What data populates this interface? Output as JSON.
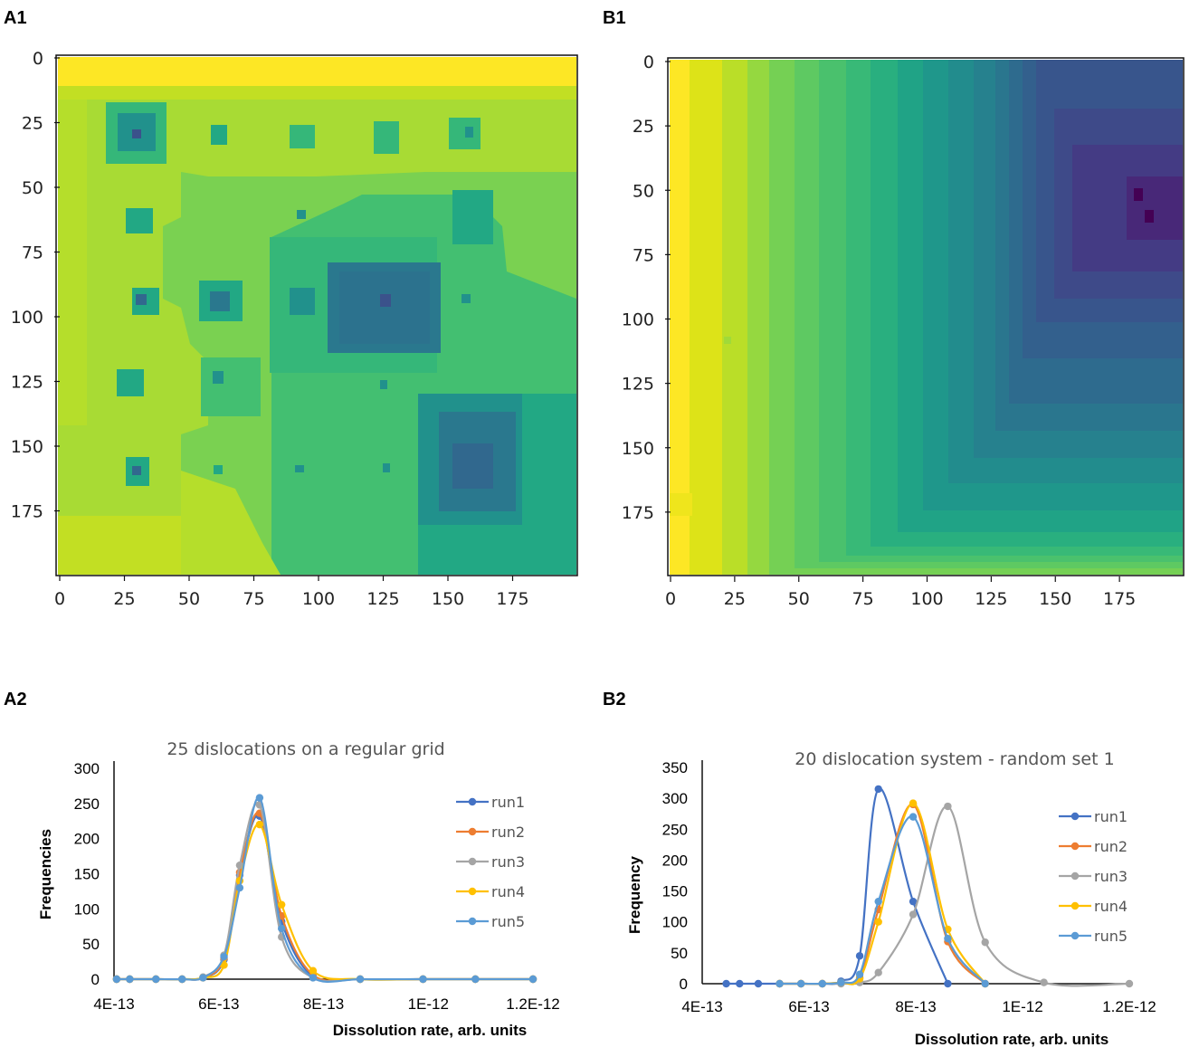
{
  "panels": {
    "a1": "A1",
    "b1": "B1",
    "a2": "A2",
    "b2": "B2"
  },
  "maps": {
    "a1": {
      "xticks": [
        "0",
        "25",
        "50",
        "75",
        "100",
        "125",
        "150",
        "175"
      ],
      "yticks": [
        "0",
        "25",
        "50",
        "75",
        "100",
        "125",
        "150",
        "175"
      ]
    },
    "b1": {
      "xticks": [
        "0",
        "25",
        "50",
        "75",
        "100",
        "125",
        "150",
        "175"
      ],
      "yticks": [
        "0",
        "25",
        "50",
        "75",
        "100",
        "125",
        "150",
        "175"
      ]
    }
  },
  "chart_data": [
    {
      "type": "line",
      "title": "25 dislocations on a regular grid",
      "xlabel": "Dissolution rate, arb. units",
      "ylabel": "Frequencies",
      "xlim": [
        4e-13,
        1.2e-12
      ],
      "ylim": [
        0,
        300
      ],
      "xtick_labels": [
        "4E-13",
        "6E-13",
        "8E-13",
        "1E-12",
        "1.2E-12"
      ],
      "ytick_labels": [
        "0",
        "50",
        "100",
        "150",
        "200",
        "250",
        "300"
      ],
      "series": [
        {
          "name": "run1",
          "color": "#4472C4",
          "points": [
            [
              4.05e-13,
              0
            ],
            [
              4.3e-13,
              0
            ],
            [
              4.8e-13,
              0
            ],
            [
              5.3e-13,
              0
            ],
            [
              5.7e-13,
              2
            ],
            [
              6.1e-13,
              28
            ],
            [
              6.4e-13,
              148
            ],
            [
              6.78e-13,
              232
            ],
            [
              7.2e-13,
              82
            ],
            [
              7.8e-13,
              4
            ],
            [
              8.7e-13,
              0
            ],
            [
              9.9e-13,
              0
            ],
            [
              1.09e-12,
              0
            ],
            [
              1.2e-12,
              0
            ]
          ]
        },
        {
          "name": "run2",
          "color": "#ED7D31",
          "points": [
            [
              4.05e-13,
              0
            ],
            [
              4.3e-13,
              0
            ],
            [
              4.8e-13,
              0
            ],
            [
              5.3e-13,
              0
            ],
            [
              5.7e-13,
              2
            ],
            [
              6.1e-13,
              30
            ],
            [
              6.4e-13,
              152
            ],
            [
              6.78e-13,
              236
            ],
            [
              7.2e-13,
              90
            ],
            [
              7.8e-13,
              6
            ],
            [
              8.7e-13,
              0
            ],
            [
              9.9e-13,
              0
            ],
            [
              1.09e-12,
              0
            ],
            [
              1.2e-12,
              0
            ]
          ]
        },
        {
          "name": "run3",
          "color": "#A5A5A5",
          "points": [
            [
              4.05e-13,
              0
            ],
            [
              4.3e-13,
              0
            ],
            [
              4.8e-13,
              0
            ],
            [
              5.3e-13,
              0
            ],
            [
              5.7e-13,
              3
            ],
            [
              6.1e-13,
              34
            ],
            [
              6.4e-13,
              162
            ],
            [
              6.78e-13,
              248
            ],
            [
              7.2e-13,
              60
            ],
            [
              7.8e-13,
              2
            ],
            [
              8.7e-13,
              0
            ],
            [
              9.9e-13,
              0
            ],
            [
              1.09e-12,
              0
            ],
            [
              1.2e-12,
              0
            ]
          ]
        },
        {
          "name": "run4",
          "color": "#FFC000",
          "points": [
            [
              4.05e-13,
              0
            ],
            [
              4.3e-13,
              0
            ],
            [
              4.8e-13,
              0
            ],
            [
              5.3e-13,
              0
            ],
            [
              5.7e-13,
              2
            ],
            [
              6.1e-13,
              20
            ],
            [
              6.4e-13,
              140
            ],
            [
              6.78e-13,
              220
            ],
            [
              7.2e-13,
              106
            ],
            [
              7.8e-13,
              12
            ],
            [
              8.7e-13,
              0
            ],
            [
              9.9e-13,
              0
            ],
            [
              1.09e-12,
              0
            ],
            [
              1.2e-12,
              0
            ]
          ]
        },
        {
          "name": "run5",
          "color": "#5B9BD5",
          "points": [
            [
              4.05e-13,
              0
            ],
            [
              4.3e-13,
              0
            ],
            [
              4.8e-13,
              0
            ],
            [
              5.3e-13,
              0
            ],
            [
              5.7e-13,
              2
            ],
            [
              6.1e-13,
              32
            ],
            [
              6.4e-13,
              130
            ],
            [
              6.78e-13,
              258
            ],
            [
              7.2e-13,
              72
            ],
            [
              7.8e-13,
              2
            ],
            [
              8.7e-13,
              0
            ],
            [
              9.9e-13,
              0
            ],
            [
              1.09e-12,
              0
            ],
            [
              1.2e-12,
              0
            ]
          ]
        }
      ]
    },
    {
      "type": "line",
      "title": "20 dislocation system - random set 1",
      "xlabel": "Dissolution rate, arb. units",
      "ylabel": "Frequency",
      "xlim": [
        4e-13,
        1.2e-12
      ],
      "ylim": [
        0,
        350
      ],
      "xtick_labels": [
        "4E-13",
        "6E-13",
        "8E-13",
        "1E-12",
        "1.2E-12"
      ],
      "ytick_labels": [
        "0",
        "50",
        "100",
        "150",
        "200",
        "250",
        "300",
        "350"
      ],
      "series": [
        {
          "name": "run1",
          "color": "#4472C4",
          "points": [
            [
              4.45e-13,
              0
            ],
            [
              4.7e-13,
              0
            ],
            [
              5.05e-13,
              0
            ],
            [
              5.45e-13,
              0
            ],
            [
              5.85e-13,
              0
            ],
            [
              6.25e-13,
              0
            ],
            [
              6.6e-13,
              4
            ],
            [
              6.95e-13,
              45
            ],
            [
              7.3e-13,
              315
            ],
            [
              7.95e-13,
              133
            ],
            [
              8.6e-13,
              0
            ]
          ]
        },
        {
          "name": "run2",
          "color": "#ED7D31",
          "points": [
            [
              5.45e-13,
              0
            ],
            [
              5.85e-13,
              0
            ],
            [
              6.25e-13,
              0
            ],
            [
              6.6e-13,
              2
            ],
            [
              6.95e-13,
              10
            ],
            [
              7.3e-13,
              120
            ],
            [
              7.95e-13,
              290
            ],
            [
              8.6e-13,
              68
            ],
            [
              9.3e-13,
              0
            ]
          ]
        },
        {
          "name": "run3",
          "color": "#A5A5A5",
          "points": [
            [
              6.25e-13,
              0
            ],
            [
              6.6e-13,
              0
            ],
            [
              6.95e-13,
              2
            ],
            [
              7.3e-13,
              18
            ],
            [
              7.95e-13,
              112
            ],
            [
              8.6e-13,
              287
            ],
            [
              9.3e-13,
              67
            ],
            [
              1.04e-12,
              2
            ],
            [
              1.2e-12,
              0
            ]
          ]
        },
        {
          "name": "run4",
          "color": "#FFC000",
          "points": [
            [
              5.45e-13,
              0
            ],
            [
              5.85e-13,
              0
            ],
            [
              6.25e-13,
              0
            ],
            [
              6.6e-13,
              2
            ],
            [
              6.95e-13,
              8
            ],
            [
              7.3e-13,
              100
            ],
            [
              7.95e-13,
              292
            ],
            [
              8.6e-13,
              88
            ],
            [
              9.3e-13,
              0
            ]
          ]
        },
        {
          "name": "run5",
          "color": "#5B9BD5",
          "points": [
            [
              5.45e-13,
              0
            ],
            [
              5.85e-13,
              0
            ],
            [
              6.25e-13,
              0
            ],
            [
              6.6e-13,
              2
            ],
            [
              6.95e-13,
              15
            ],
            [
              7.3e-13,
              133
            ],
            [
              7.95e-13,
              270
            ],
            [
              8.6e-13,
              73
            ],
            [
              9.3e-13,
              0
            ]
          ]
        }
      ]
    }
  ]
}
